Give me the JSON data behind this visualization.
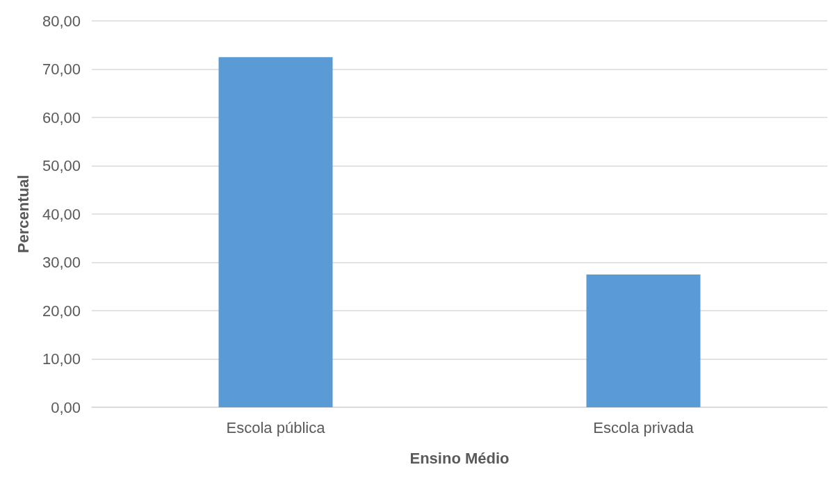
{
  "chart_data": {
    "type": "bar",
    "xlabel": "Ensino Médio",
    "ylabel": "Percentual",
    "categories": [
      "Escola pública",
      "Escola privada"
    ],
    "values": [
      72.5,
      27.5
    ],
    "color": "#5b9bd5",
    "ylim": [
      0,
      80
    ],
    "yticks": [
      {
        "value": 0,
        "label": "0,00"
      },
      {
        "value": 10,
        "label": "10,00"
      },
      {
        "value": 20,
        "label": "20,00"
      },
      {
        "value": 30,
        "label": "30,00"
      },
      {
        "value": 40,
        "label": "40,00"
      },
      {
        "value": 50,
        "label": "50,00"
      },
      {
        "value": 60,
        "label": "60,00"
      },
      {
        "value": 70,
        "label": "70,00"
      },
      {
        "value": 80,
        "label": "80,00"
      }
    ],
    "grid": "y"
  }
}
